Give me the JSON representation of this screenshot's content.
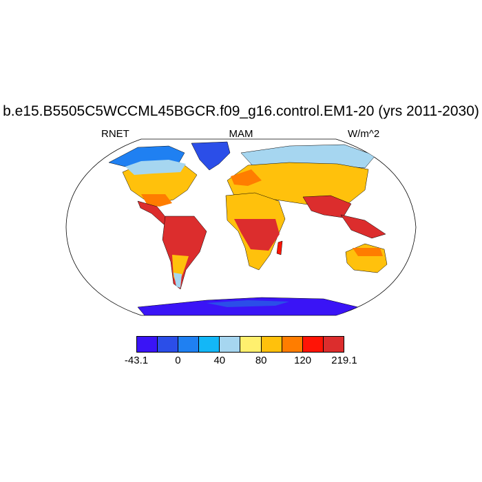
{
  "title": "b.e15.B5505C5WCCML45BGCR.f09_g16.control.EM1-20 (yrs 2011-2030)",
  "left_label": "RNET",
  "center_label": "MAM",
  "right_label": "W/m^2",
  "map": {
    "projection": "Robinson",
    "variable": "RNET",
    "season": "MAM",
    "units": "W/m^2"
  },
  "colorbar": {
    "colors": [
      "#3a14f6",
      "#2b4ee8",
      "#1f80f2",
      "#13b7f7",
      "#a6d6f0",
      "#fff06e",
      "#ffc10c",
      "#ff7d00",
      "#ff1406",
      "#dc2d2d"
    ],
    "labels": [
      "-43.1",
      "0",
      "40",
      "80",
      "120",
      "219.1"
    ]
  }
}
